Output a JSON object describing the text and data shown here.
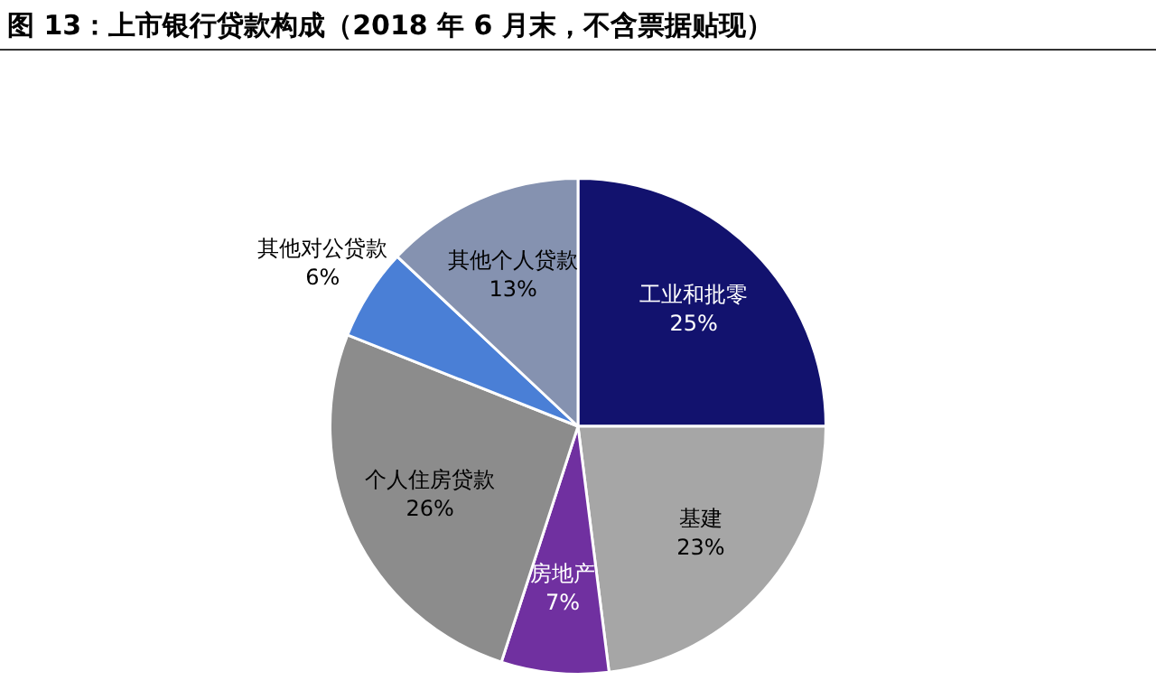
{
  "chart_data": {
    "type": "pie",
    "title": "图 13：上市银行贷款构成（2018 年 6 月末，不含票据贴现）",
    "categories": [
      "工业和批零",
      "基建",
      "房地产",
      "个人住房贷款",
      "其他对公贷款",
      "其他个人贷款"
    ],
    "values": [
      25,
      23,
      7,
      26,
      6,
      13
    ],
    "colors": [
      "#12126e",
      "#a6a6a6",
      "#7030a0",
      "#8c8c8c",
      "#4a7fd6",
      "#8592b0"
    ],
    "value_labels": [
      "25%",
      "23%",
      "7%",
      "26%",
      "6%",
      "13%"
    ]
  }
}
